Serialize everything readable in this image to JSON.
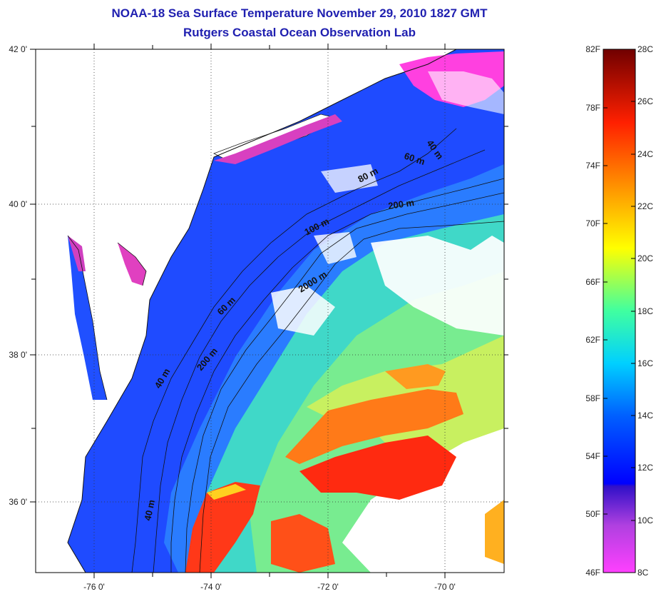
{
  "header": {
    "title": "NOAA-18 Sea Surface Temperature November 29, 2010 1827 GMT",
    "subtitle": "Rutgers Coastal Ocean Observation Lab"
  },
  "map": {
    "lat_labels": [
      "42 0'",
      "40 0'",
      "38 0'",
      "36 0'"
    ],
    "lon_labels": [
      "-76 0'",
      "-74 0'",
      "-72 0'",
      "-70 0'"
    ],
    "grid": true,
    "depth_contour_labels": [
      "40 m",
      "60 m",
      "80 m",
      "200 m",
      "100 m",
      "2000 m",
      "60 m",
      "200 m",
      "40 m",
      "40 m"
    ]
  },
  "colorbar": {
    "fahrenheit_labels": [
      "82F",
      "78F",
      "74F",
      "70F",
      "66F",
      "62F",
      "58F",
      "54F",
      "50F",
      "46F"
    ],
    "celsius_labels": [
      "28C",
      "26C",
      "24C",
      "22C",
      "20C",
      "18C",
      "16C",
      "14C",
      "12C",
      "10C",
      "8C"
    ],
    "colors": [
      "#800000",
      "#ff0000",
      "#ff8000",
      "#ffff00",
      "#40ff80",
      "#00ffff",
      "#0080ff",
      "#0000ff",
      "#7a2bd9",
      "#ff40ff"
    ]
  }
}
